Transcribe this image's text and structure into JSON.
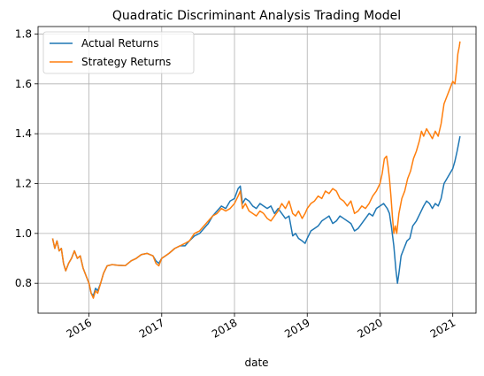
{
  "chart_data": {
    "type": "line",
    "title": "Quadratic Discriminant Analysis Trading Model",
    "xlabel": "date",
    "ylabel": "",
    "xlim": [
      2015.3,
      2021.32
    ],
    "ylim": [
      0.68,
      1.83
    ],
    "x_ticks": [
      2016,
      2017,
      2018,
      2019,
      2020,
      2021
    ],
    "x_tick_labels": [
      "2016",
      "2017",
      "2018",
      "2019",
      "2020",
      "2021"
    ],
    "y_ticks": [
      0.8,
      1.0,
      1.2,
      1.4,
      1.6,
      1.8
    ],
    "y_tick_labels": [
      "0.8",
      "1.0",
      "1.2",
      "1.4",
      "1.6",
      "1.8"
    ],
    "grid": true,
    "legend_position": "top-left",
    "series": [
      {
        "name": "Actual Returns",
        "color": "#1f77b4",
        "points": [
          [
            2015.5,
            0.98
          ],
          [
            2015.53,
            0.94
          ],
          [
            2015.56,
            0.97
          ],
          [
            2015.59,
            0.93
          ],
          [
            2015.62,
            0.94
          ],
          [
            2015.65,
            0.88
          ],
          [
            2015.68,
            0.85
          ],
          [
            2015.72,
            0.88
          ],
          [
            2015.76,
            0.9
          ],
          [
            2015.8,
            0.93
          ],
          [
            2015.84,
            0.9
          ],
          [
            2015.88,
            0.91
          ],
          [
            2015.92,
            0.86
          ],
          [
            2015.96,
            0.83
          ],
          [
            2016.0,
            0.8
          ],
          [
            2016.03,
            0.76
          ],
          [
            2016.06,
            0.75
          ],
          [
            2016.09,
            0.78
          ],
          [
            2016.12,
            0.77
          ],
          [
            2016.16,
            0.8
          ],
          [
            2016.2,
            0.84
          ],
          [
            2016.25,
            0.87
          ],
          [
            2016.32,
            0.875
          ],
          [
            2016.4,
            0.872
          ],
          [
            2016.5,
            0.871
          ],
          [
            2016.58,
            0.89
          ],
          [
            2016.65,
            0.9
          ],
          [
            2016.72,
            0.915
          ],
          [
            2016.8,
            0.92
          ],
          [
            2016.88,
            0.91
          ],
          [
            2016.92,
            0.89
          ],
          [
            2016.96,
            0.88
          ],
          [
            2017.0,
            0.9
          ],
          [
            2017.05,
            0.91
          ],
          [
            2017.1,
            0.92
          ],
          [
            2017.18,
            0.94
          ],
          [
            2017.25,
            0.95
          ],
          [
            2017.32,
            0.95
          ],
          [
            2017.38,
            0.97
          ],
          [
            2017.45,
            0.99
          ],
          [
            2017.52,
            1.0
          ],
          [
            2017.58,
            1.02
          ],
          [
            2017.64,
            1.04
          ],
          [
            2017.7,
            1.07
          ],
          [
            2017.76,
            1.09
          ],
          [
            2017.82,
            1.11
          ],
          [
            2017.88,
            1.1
          ],
          [
            2017.94,
            1.13
          ],
          [
            2018.0,
            1.14
          ],
          [
            2018.05,
            1.18
          ],
          [
            2018.08,
            1.19
          ],
          [
            2018.11,
            1.12
          ],
          [
            2018.15,
            1.14
          ],
          [
            2018.2,
            1.13
          ],
          [
            2018.25,
            1.11
          ],
          [
            2018.3,
            1.1
          ],
          [
            2018.35,
            1.12
          ],
          [
            2018.4,
            1.11
          ],
          [
            2018.45,
            1.1
          ],
          [
            2018.5,
            1.11
          ],
          [
            2018.55,
            1.08
          ],
          [
            2018.6,
            1.1
          ],
          [
            2018.65,
            1.08
          ],
          [
            2018.7,
            1.06
          ],
          [
            2018.75,
            1.07
          ],
          [
            2018.8,
            0.99
          ],
          [
            2018.84,
            1.0
          ],
          [
            2018.88,
            0.98
          ],
          [
            2018.93,
            0.97
          ],
          [
            2018.97,
            0.96
          ],
          [
            2019.0,
            0.98
          ],
          [
            2019.05,
            1.01
          ],
          [
            2019.1,
            1.02
          ],
          [
            2019.15,
            1.03
          ],
          [
            2019.2,
            1.05
          ],
          [
            2019.25,
            1.06
          ],
          [
            2019.3,
            1.07
          ],
          [
            2019.35,
            1.04
          ],
          [
            2019.4,
            1.05
          ],
          [
            2019.45,
            1.07
          ],
          [
            2019.5,
            1.06
          ],
          [
            2019.55,
            1.05
          ],
          [
            2019.6,
            1.04
          ],
          [
            2019.65,
            1.01
          ],
          [
            2019.7,
            1.02
          ],
          [
            2019.75,
            1.04
          ],
          [
            2019.8,
            1.06
          ],
          [
            2019.85,
            1.08
          ],
          [
            2019.9,
            1.07
          ],
          [
            2019.95,
            1.1
          ],
          [
            2020.0,
            1.11
          ],
          [
            2020.05,
            1.12
          ],
          [
            2020.1,
            1.1
          ],
          [
            2020.13,
            1.08
          ],
          [
            2020.16,
            1.02
          ],
          [
            2020.19,
            0.95
          ],
          [
            2020.22,
            0.85
          ],
          [
            2020.24,
            0.8
          ],
          [
            2020.26,
            0.84
          ],
          [
            2020.29,
            0.91
          ],
          [
            2020.33,
            0.94
          ],
          [
            2020.37,
            0.97
          ],
          [
            2020.41,
            0.98
          ],
          [
            2020.45,
            1.03
          ],
          [
            2020.5,
            1.05
          ],
          [
            2020.55,
            1.08
          ],
          [
            2020.6,
            1.11
          ],
          [
            2020.64,
            1.13
          ],
          [
            2020.68,
            1.12
          ],
          [
            2020.72,
            1.1
          ],
          [
            2020.76,
            1.12
          ],
          [
            2020.8,
            1.11
          ],
          [
            2020.84,
            1.14
          ],
          [
            2020.88,
            1.2
          ],
          [
            2020.92,
            1.22
          ],
          [
            2020.96,
            1.24
          ],
          [
            2021.0,
            1.26
          ],
          [
            2021.03,
            1.29
          ],
          [
            2021.06,
            1.33
          ],
          [
            2021.08,
            1.36
          ],
          [
            2021.1,
            1.39
          ]
        ]
      },
      {
        "name": "Strategy Returns",
        "color": "#ff7f0e",
        "points": [
          [
            2015.5,
            0.98
          ],
          [
            2015.53,
            0.94
          ],
          [
            2015.56,
            0.97
          ],
          [
            2015.59,
            0.93
          ],
          [
            2015.62,
            0.94
          ],
          [
            2015.65,
            0.88
          ],
          [
            2015.68,
            0.85
          ],
          [
            2015.72,
            0.88
          ],
          [
            2015.76,
            0.9
          ],
          [
            2015.8,
            0.93
          ],
          [
            2015.84,
            0.9
          ],
          [
            2015.88,
            0.91
          ],
          [
            2015.92,
            0.86
          ],
          [
            2015.96,
            0.83
          ],
          [
            2016.0,
            0.8
          ],
          [
            2016.03,
            0.76
          ],
          [
            2016.06,
            0.74
          ],
          [
            2016.09,
            0.77
          ],
          [
            2016.12,
            0.76
          ],
          [
            2016.16,
            0.8
          ],
          [
            2016.2,
            0.84
          ],
          [
            2016.25,
            0.87
          ],
          [
            2016.32,
            0.875
          ],
          [
            2016.4,
            0.872
          ],
          [
            2016.5,
            0.871
          ],
          [
            2016.58,
            0.89
          ],
          [
            2016.65,
            0.9
          ],
          [
            2016.72,
            0.915
          ],
          [
            2016.8,
            0.92
          ],
          [
            2016.88,
            0.91
          ],
          [
            2016.92,
            0.88
          ],
          [
            2016.96,
            0.87
          ],
          [
            2017.0,
            0.9
          ],
          [
            2017.05,
            0.91
          ],
          [
            2017.1,
            0.92
          ],
          [
            2017.18,
            0.94
          ],
          [
            2017.25,
            0.95
          ],
          [
            2017.32,
            0.96
          ],
          [
            2017.38,
            0.97
          ],
          [
            2017.45,
            1.0
          ],
          [
            2017.52,
            1.01
          ],
          [
            2017.58,
            1.03
          ],
          [
            2017.64,
            1.05
          ],
          [
            2017.7,
            1.07
          ],
          [
            2017.76,
            1.08
          ],
          [
            2017.82,
            1.1
          ],
          [
            2017.88,
            1.09
          ],
          [
            2017.94,
            1.1
          ],
          [
            2018.0,
            1.12
          ],
          [
            2018.05,
            1.15
          ],
          [
            2018.08,
            1.17
          ],
          [
            2018.11,
            1.1
          ],
          [
            2018.15,
            1.12
          ],
          [
            2018.2,
            1.09
          ],
          [
            2018.25,
            1.08
          ],
          [
            2018.3,
            1.07
          ],
          [
            2018.35,
            1.09
          ],
          [
            2018.4,
            1.08
          ],
          [
            2018.45,
            1.06
          ],
          [
            2018.5,
            1.05
          ],
          [
            2018.55,
            1.07
          ],
          [
            2018.6,
            1.09
          ],
          [
            2018.65,
            1.12
          ],
          [
            2018.7,
            1.1
          ],
          [
            2018.75,
            1.13
          ],
          [
            2018.8,
            1.08
          ],
          [
            2018.84,
            1.07
          ],
          [
            2018.88,
            1.09
          ],
          [
            2018.93,
            1.06
          ],
          [
            2018.97,
            1.08
          ],
          [
            2019.0,
            1.1
          ],
          [
            2019.05,
            1.12
          ],
          [
            2019.1,
            1.13
          ],
          [
            2019.15,
            1.15
          ],
          [
            2019.2,
            1.14
          ],
          [
            2019.25,
            1.17
          ],
          [
            2019.3,
            1.16
          ],
          [
            2019.35,
            1.18
          ],
          [
            2019.4,
            1.17
          ],
          [
            2019.45,
            1.14
          ],
          [
            2019.5,
            1.13
          ],
          [
            2019.55,
            1.11
          ],
          [
            2019.6,
            1.13
          ],
          [
            2019.65,
            1.08
          ],
          [
            2019.7,
            1.09
          ],
          [
            2019.75,
            1.11
          ],
          [
            2019.8,
            1.1
          ],
          [
            2019.85,
            1.12
          ],
          [
            2019.9,
            1.15
          ],
          [
            2019.95,
            1.17
          ],
          [
            2020.0,
            1.2
          ],
          [
            2020.03,
            1.24
          ],
          [
            2020.06,
            1.3
          ],
          [
            2020.09,
            1.31
          ],
          [
            2020.11,
            1.27
          ],
          [
            2020.13,
            1.22
          ],
          [
            2020.15,
            1.15
          ],
          [
            2020.17,
            1.07
          ],
          [
            2020.19,
            1.0
          ],
          [
            2020.21,
            1.03
          ],
          [
            2020.23,
            1.0
          ],
          [
            2020.26,
            1.08
          ],
          [
            2020.3,
            1.14
          ],
          [
            2020.34,
            1.17
          ],
          [
            2020.38,
            1.22
          ],
          [
            2020.42,
            1.25
          ],
          [
            2020.46,
            1.3
          ],
          [
            2020.5,
            1.33
          ],
          [
            2020.54,
            1.37
          ],
          [
            2020.57,
            1.41
          ],
          [
            2020.6,
            1.39
          ],
          [
            2020.64,
            1.42
          ],
          [
            2020.68,
            1.4
          ],
          [
            2020.72,
            1.38
          ],
          [
            2020.76,
            1.41
          ],
          [
            2020.8,
            1.39
          ],
          [
            2020.84,
            1.44
          ],
          [
            2020.88,
            1.52
          ],
          [
            2020.92,
            1.55
          ],
          [
            2020.96,
            1.58
          ],
          [
            2021.0,
            1.61
          ],
          [
            2021.03,
            1.6
          ],
          [
            2021.05,
            1.65
          ],
          [
            2021.07,
            1.72
          ],
          [
            2021.09,
            1.75
          ],
          [
            2021.1,
            1.77
          ]
        ]
      }
    ]
  }
}
